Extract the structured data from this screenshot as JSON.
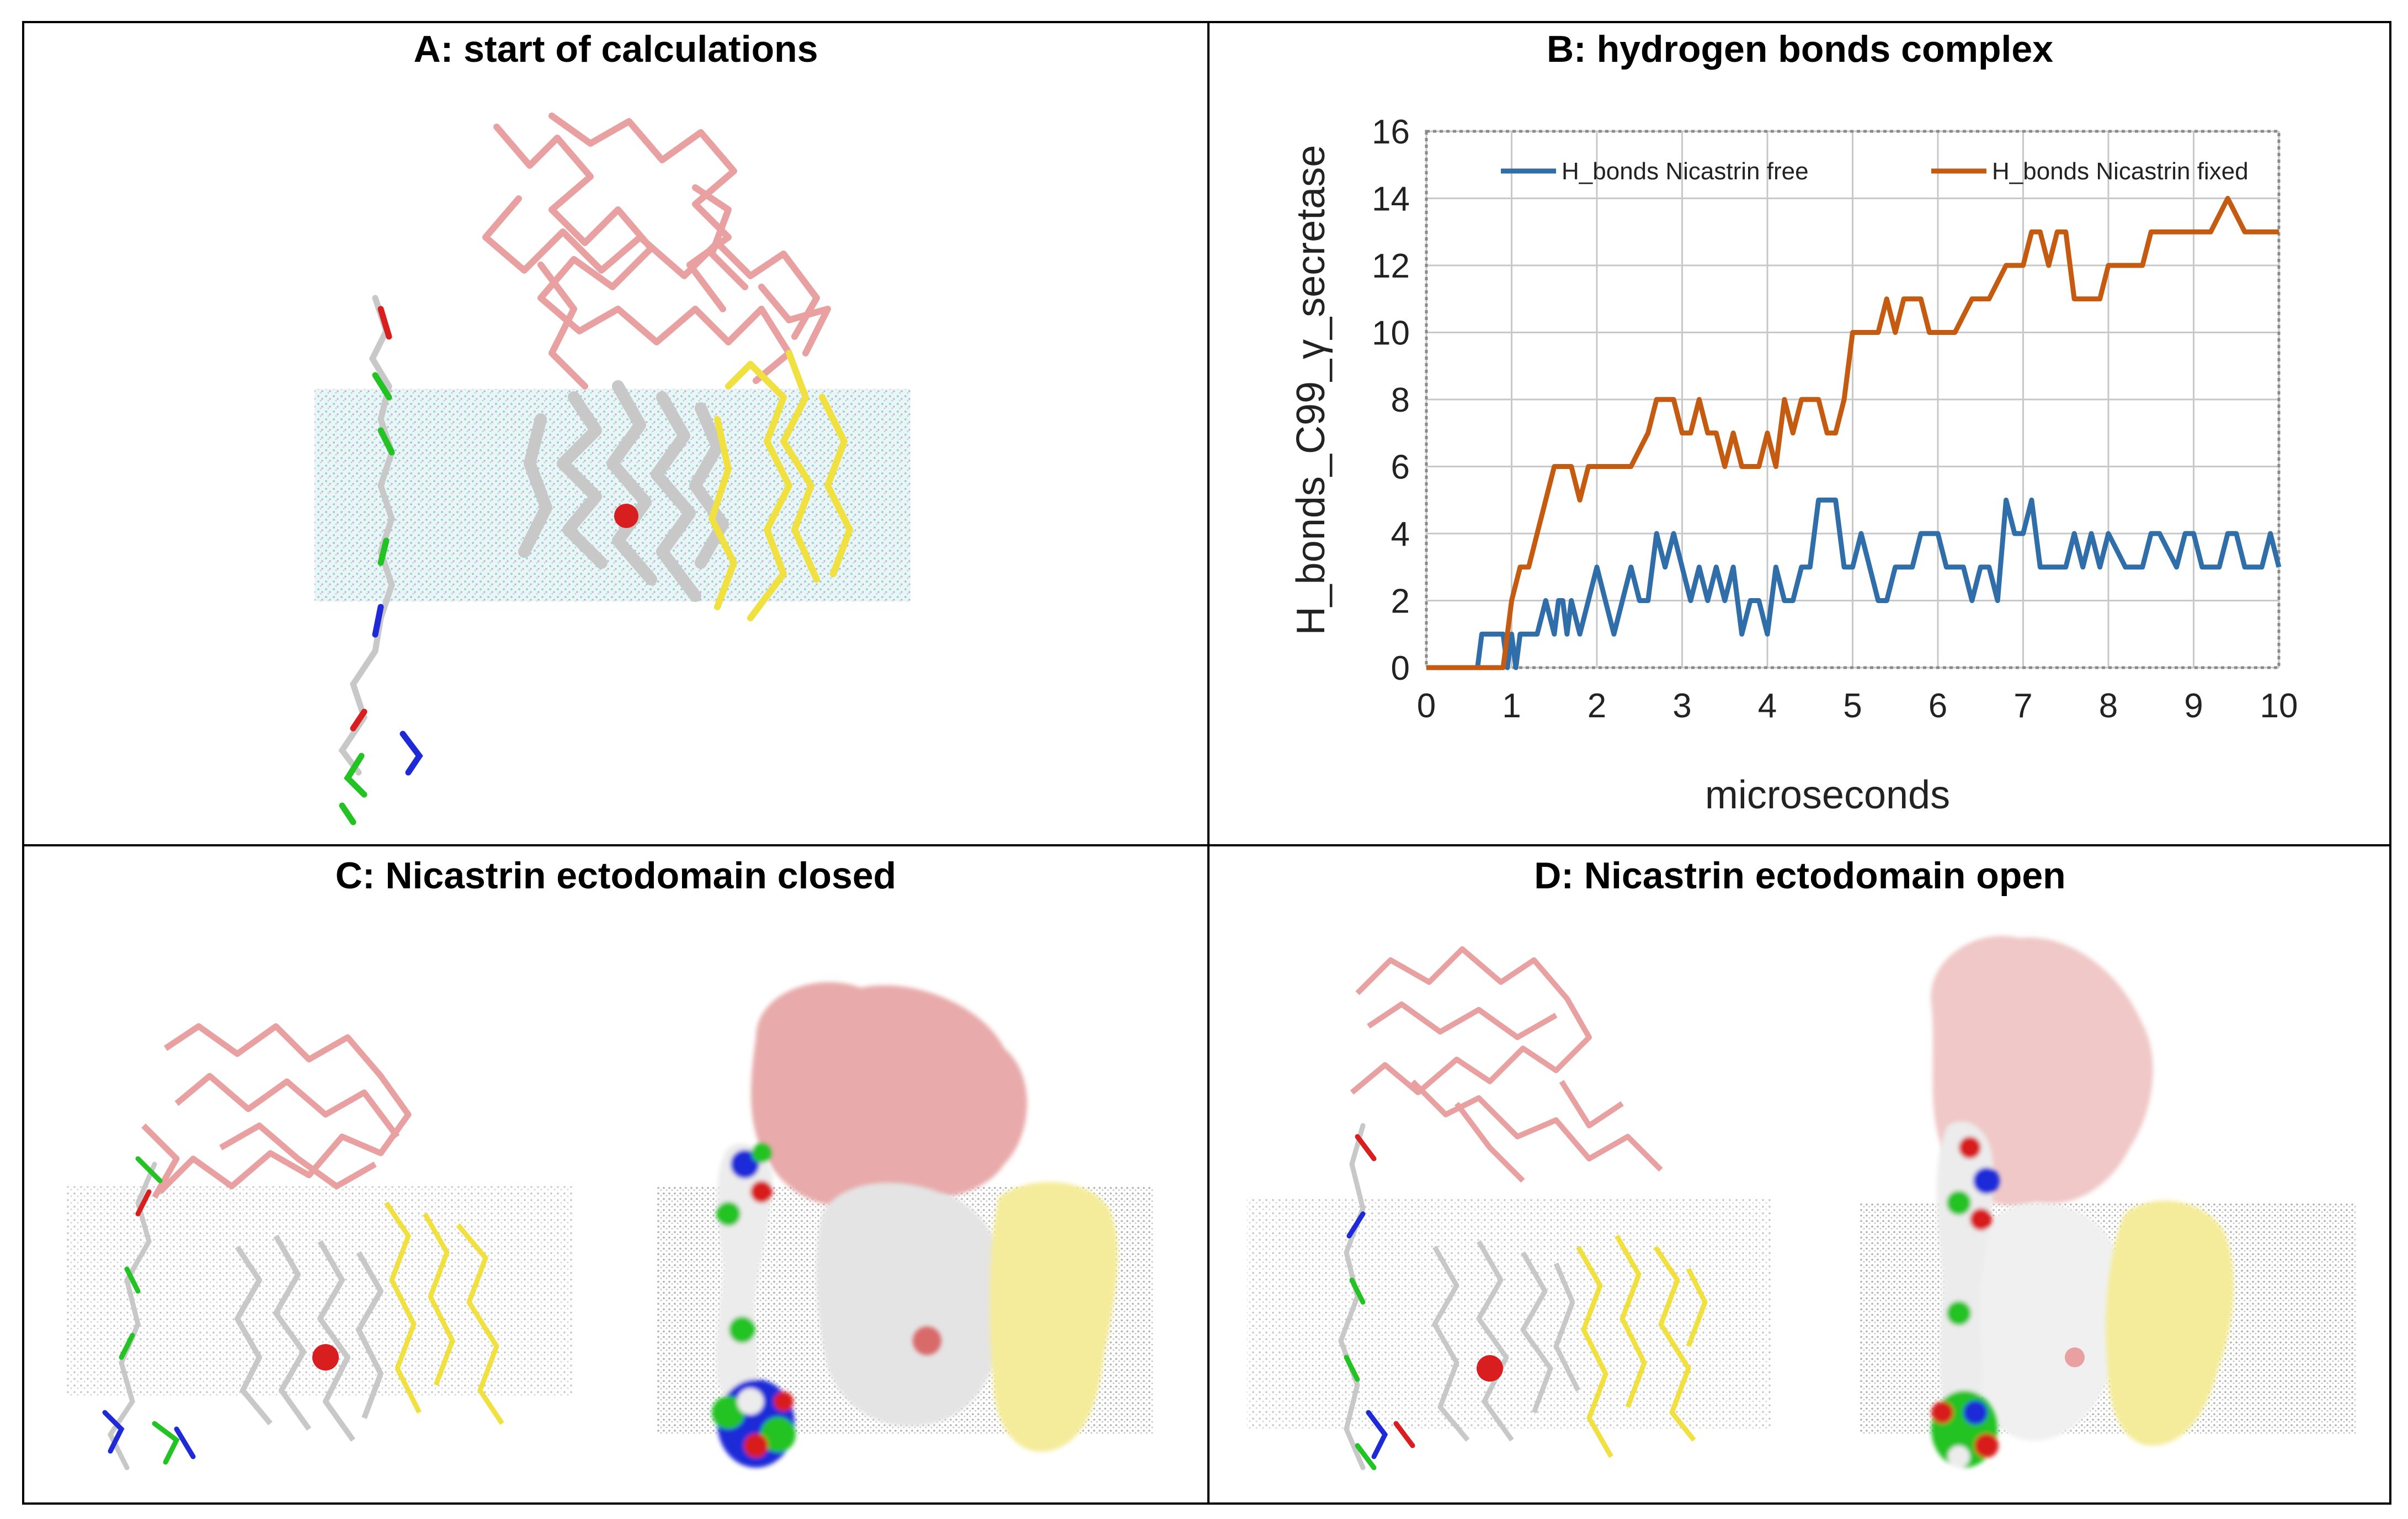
{
  "panels": {
    "a": {
      "title": "A: start of calculations"
    },
    "b": {
      "title": "B: hydrogen bonds complex"
    },
    "c": {
      "title": "C: Nicastrin ectodomain closed"
    },
    "d": {
      "title": "D: Nicastrin ectodomain open"
    }
  },
  "molecule_colors": {
    "nicastrin": "#e8a0a0",
    "presenilin": "#c8c8c8",
    "aph_pen": "#f0e040",
    "c99_green": "#22c322",
    "c99_red": "#d81e1e",
    "c99_blue": "#1e2ad8",
    "membrane": "#9ed8d8",
    "active_site": "#d81e1e"
  },
  "chart_data": {
    "type": "line",
    "title": "B: hydrogen bonds complex",
    "xlabel": "microseconds",
    "ylabel": "H_bonds_C99_γ_secretase",
    "xlim": [
      0,
      10
    ],
    "ylim": [
      0,
      16
    ],
    "xticks": [
      "0",
      "1",
      "2",
      "3",
      "4",
      "5",
      "6",
      "7",
      "8",
      "9",
      "10"
    ],
    "yticks": [
      "0",
      "2",
      "4",
      "6",
      "8",
      "10",
      "12",
      "14",
      "16"
    ],
    "grid": true,
    "legend_position": "top",
    "series": [
      {
        "name": "H_bonds Nicastrin free",
        "color": "#2f6ea8",
        "x": [
          0,
          0.3,
          0.6,
          0.65,
          0.9,
          0.95,
          1.0,
          1.05,
          1.1,
          1.2,
          1.3,
          1.4,
          1.5,
          1.55,
          1.6,
          1.65,
          1.7,
          1.8,
          1.9,
          2.0,
          2.1,
          2.2,
          2.3,
          2.4,
          2.5,
          2.6,
          2.7,
          2.8,
          2.9,
          3.0,
          3.1,
          3.2,
          3.3,
          3.4,
          3.5,
          3.6,
          3.7,
          3.8,
          3.9,
          4.0,
          4.1,
          4.2,
          4.3,
          4.4,
          4.5,
          4.6,
          4.7,
          4.8,
          4.9,
          5.0,
          5.1,
          5.2,
          5.3,
          5.4,
          5.5,
          5.6,
          5.7,
          5.8,
          5.9,
          6.0,
          6.1,
          6.2,
          6.3,
          6.4,
          6.5,
          6.6,
          6.7,
          6.8,
          6.9,
          7.0,
          7.1,
          7.2,
          7.3,
          7.4,
          7.5,
          7.6,
          7.7,
          7.8,
          7.9,
          8.0,
          8.2,
          8.4,
          8.5,
          8.6,
          8.8,
          8.9,
          9.0,
          9.1,
          9.3,
          9.4,
          9.5,
          9.6,
          9.8,
          9.9,
          10.0
        ],
        "values": [
          0,
          0,
          0,
          1,
          1,
          0,
          1,
          0,
          1,
          1,
          1,
          2,
          1,
          2,
          2,
          1,
          2,
          1,
          2,
          3,
          2,
          1,
          2,
          3,
          2,
          2,
          4,
          3,
          4,
          3,
          2,
          3,
          2,
          3,
          2,
          3,
          1,
          2,
          2,
          1,
          3,
          2,
          2,
          3,
          3,
          5,
          5,
          5,
          3,
          3,
          4,
          3,
          2,
          2,
          3,
          3,
          3,
          4,
          4,
          4,
          3,
          3,
          3,
          2,
          3,
          3,
          2,
          5,
          4,
          4,
          5,
          3,
          3,
          3,
          3,
          4,
          3,
          4,
          3,
          4,
          3,
          3,
          4,
          4,
          3,
          4,
          4,
          3,
          3,
          4,
          4,
          3,
          3,
          4,
          3
        ],
        "x_note": ""
      },
      {
        "name": "H_bonds Nicastrin fixed",
        "color": "#c55a11",
        "x": [
          0,
          0.9,
          0.95,
          1.0,
          1.1,
          1.2,
          1.3,
          1.4,
          1.5,
          1.6,
          1.7,
          1.8,
          1.9,
          2.0,
          2.2,
          2.4,
          2.6,
          2.7,
          2.8,
          2.9,
          3.0,
          3.1,
          3.2,
          3.3,
          3.4,
          3.5,
          3.6,
          3.7,
          3.8,
          3.9,
          4.0,
          4.1,
          4.2,
          4.3,
          4.4,
          4.5,
          4.6,
          4.7,
          4.8,
          4.9,
          5.0,
          5.1,
          5.2,
          5.3,
          5.4,
          5.5,
          5.6,
          5.7,
          5.8,
          5.9,
          6.0,
          6.1,
          6.2,
          6.4,
          6.5,
          6.6,
          6.8,
          7.0,
          7.1,
          7.2,
          7.3,
          7.4,
          7.5,
          7.6,
          7.7,
          7.8,
          7.9,
          8.0,
          8.2,
          8.4,
          8.5,
          8.6,
          8.8,
          9.0,
          9.2,
          9.4,
          9.6,
          9.7,
          9.8,
          10.0
        ],
        "values": [
          0,
          0,
          1,
          2,
          3,
          3,
          4,
          5,
          6,
          6,
          6,
          5,
          6,
          6,
          6,
          6,
          7,
          8,
          8,
          8,
          7,
          7,
          8,
          7,
          7,
          6,
          7,
          6,
          6,
          6,
          7,
          6,
          8,
          7,
          8,
          8,
          8,
          7,
          7,
          8,
          10,
          10,
          10,
          10,
          11,
          10,
          11,
          11,
          11,
          10,
          10,
          10,
          10,
          11,
          11,
          11,
          12,
          12,
          13,
          13,
          12,
          13,
          13,
          11,
          11,
          11,
          11,
          12,
          12,
          12,
          13,
          13,
          13,
          13,
          13,
          14,
          13,
          13,
          13,
          13
        ],
        "x_note": ""
      }
    ]
  }
}
